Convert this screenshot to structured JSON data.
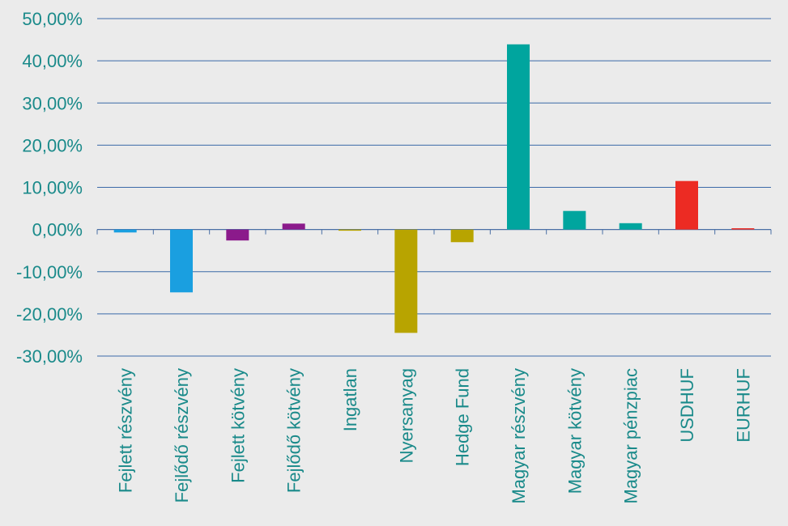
{
  "chart_data": {
    "type": "bar",
    "title": "",
    "xlabel": "",
    "ylabel": "",
    "categories": [
      "Fejlett részvény",
      "Fejlődő részvény",
      "Fejlett kötvény",
      "Fejlődő kötvény",
      "Ingatlan",
      "Nyersanyag",
      "Hedge Fund",
      "Magyar részvény",
      "Magyar kötvény",
      "Magyar pénzpiac",
      "USDHUF",
      "EURHUF"
    ],
    "values": [
      -0.7,
      -14.9,
      -2.6,
      1.4,
      -0.2,
      -24.5,
      -3.0,
      43.9,
      4.4,
      1.5,
      11.5,
      0.3
    ],
    "colors": [
      "#1a9fe0",
      "#1a9fe0",
      "#8b1a8b",
      "#8b1a8b",
      "#b8a400",
      "#b8a400",
      "#b8a400",
      "#00a59e",
      "#00a59e",
      "#00a59e",
      "#ec2b23",
      "#ec2b23"
    ],
    "ylim": [
      -30,
      50
    ],
    "yticks": [
      50,
      40,
      30,
      20,
      10,
      0,
      -10,
      -20,
      -30
    ],
    "ytick_labels": [
      "50,00%",
      "40,00%",
      "30,00%",
      "20,00%",
      "10,00%",
      "0,00%",
      "-10,00%",
      "-20,00%",
      "-30,00%"
    ],
    "grid": true,
    "legend": "none"
  }
}
